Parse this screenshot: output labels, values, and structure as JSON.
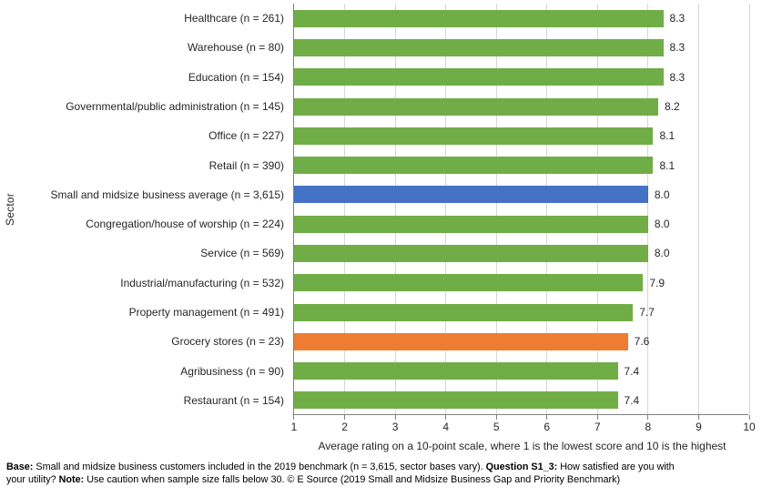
{
  "chart_data": {
    "type": "bar",
    "orientation": "horizontal",
    "title": "",
    "xlabel": "Average rating on a 10-point scale, where 1 is the lowest score and 10 is the highest",
    "ylabel": "Sector",
    "xlim": [
      1,
      10
    ],
    "xticks": [
      1,
      2,
      3,
      4,
      5,
      6,
      7,
      8,
      9,
      10
    ],
    "grid": "vertical",
    "legend": "none",
    "categories": [
      "Healthcare (n = 261)",
      "Warehouse (n = 80)",
      "Education (n = 154)",
      "Governmental/public administration (n = 145)",
      "Office (n = 227)",
      "Retail (n = 390)",
      "Small and midsize business average (n = 3,615)",
      "Congregation/house of worship (n = 224)",
      "Service (n = 569)",
      "Industrial/manufacturing (n = 532)",
      "Property management (n = 491)",
      "Grocery stores (n = 23)",
      "Agribusiness (n = 90)",
      "Restaurant (n = 154)"
    ],
    "values": [
      8.3,
      8.3,
      8.3,
      8.2,
      8.1,
      8.1,
      8.0,
      8.0,
      8.0,
      7.9,
      7.7,
      7.6,
      7.4,
      7.4
    ],
    "data_labels": [
      "8.3",
      "8.3",
      "8.3",
      "8.2",
      "8.1",
      "8.1",
      "8.0",
      "8.0",
      "8.0",
      "7.9",
      "7.7",
      "7.6",
      "7.4",
      "7.4"
    ],
    "bar_colors": [
      "#70AD47",
      "#70AD47",
      "#70AD47",
      "#70AD47",
      "#70AD47",
      "#70AD47",
      "#4472C4",
      "#70AD47",
      "#70AD47",
      "#70AD47",
      "#70AD47",
      "#ED7D31",
      "#70AD47",
      "#70AD47"
    ],
    "colors": {
      "bar_default": "#70AD47",
      "bar_average_highlight": "#4472C4",
      "bar_small_sample_highlight": "#ED7D31",
      "gridline": "#D6D6D6",
      "axis_line": "#808080"
    }
  },
  "footer": {
    "lines": [
      [
        {
          "text": "Base:",
          "bold": true
        },
        {
          "text": " Small and midsize business customers included in the 2019 benchmark (n = 3,615, sector bases vary). ",
          "bold": false
        },
        {
          "text": "Question S1_3:",
          "bold": true
        },
        {
          "text": " How satisfied are you with",
          "bold": false
        }
      ],
      [
        {
          "text": "your utility? ",
          "bold": false
        },
        {
          "text": "Note:",
          "bold": true
        },
        {
          "text": " Use caution when sample size falls below 30. © E Source (2019 Small and Midsize Business Gap and Priority Benchmark)",
          "bold": false
        }
      ]
    ]
  }
}
